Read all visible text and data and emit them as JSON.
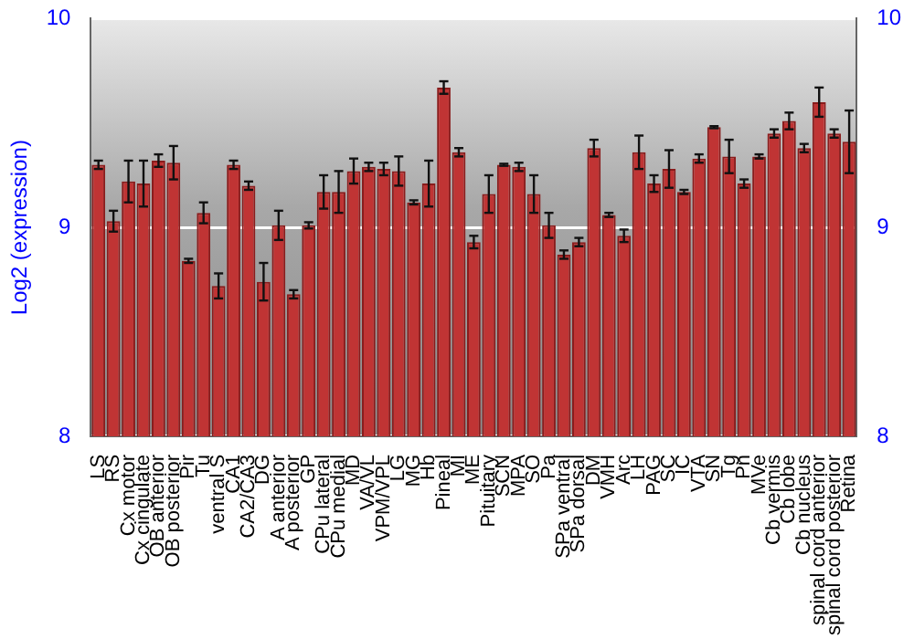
{
  "chart_data": {
    "type": "bar",
    "ylabel": "Log2 (expression)",
    "categories": [
      "LS",
      "RS",
      "Cx motor",
      "Cx cingulate",
      "OB anterior",
      "OB posterior",
      "Pir",
      "Tu",
      "ventral S",
      "CA1",
      "CA2/CA3",
      "DG",
      "A anterior",
      "A posterior",
      "GP",
      "CPu lateral",
      "CPu medial",
      "MD",
      "VA/VL",
      "VPM/VPL",
      "LG",
      "MG",
      "Hb",
      "Pineal",
      "MI",
      "ME",
      "Pituitary",
      "SCN",
      "MPA",
      "SO",
      "Pa",
      "SPa ventral",
      "SPa dorsal",
      "DM",
      "VMH",
      "Arc",
      "LH",
      "PAG",
      "SC",
      "IC",
      "VTA",
      "SN",
      "Tg",
      "Pn",
      "MVe",
      "Cb vermis",
      "Cb lobe",
      "Cb nucleus",
      "spinal cord anterior",
      "spinal cord posterior",
      "Retina"
    ],
    "values": [
      9.3,
      9.03,
      9.22,
      9.21,
      9.32,
      9.31,
      8.84,
      9.07,
      8.72,
      9.3,
      9.2,
      8.74,
      9.01,
      8.68,
      9.01,
      9.17,
      9.17,
      9.27,
      9.29,
      9.28,
      9.27,
      9.12,
      9.21,
      9.67,
      9.36,
      8.93,
      9.16,
      9.3,
      9.29,
      9.16,
      9.01,
      8.87,
      8.93,
      9.38,
      9.06,
      8.96,
      9.36,
      9.21,
      9.28,
      9.17,
      9.33,
      9.48,
      9.34,
      9.21,
      9.34,
      9.45,
      9.51,
      9.38,
      9.6,
      9.45,
      9.41
    ],
    "errors": [
      0.02,
      0.05,
      0.1,
      0.11,
      0.03,
      0.08,
      0.01,
      0.05,
      0.06,
      0.02,
      0.02,
      0.09,
      0.07,
      0.02,
      0.015,
      0.08,
      0.1,
      0.06,
      0.02,
      0.03,
      0.07,
      0.01,
      0.11,
      0.03,
      0.02,
      0.03,
      0.09,
      0.005,
      0.02,
      0.09,
      0.06,
      0.02,
      0.02,
      0.04,
      0.01,
      0.03,
      0.08,
      0.04,
      0.09,
      0.01,
      0.02,
      0.005,
      0.08,
      0.02,
      0.01,
      0.02,
      0.04,
      0.02,
      0.07,
      0.02,
      0.15
    ],
    "color": "#c03434",
    "ylim": [
      8,
      10
    ],
    "yticks": [
      8,
      9,
      10
    ],
    "y2lim": [
      8,
      10
    ],
    "y2ticks": [
      8,
      9,
      10
    ],
    "grid": "y",
    "legend": false
  }
}
